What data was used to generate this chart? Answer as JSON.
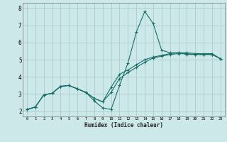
{
  "xlabel": "Humidex (Indice chaleur)",
  "bg_color": "#cce8e8",
  "grid_color": "#aacccc",
  "line_color": "#1a6e6a",
  "xlim": [
    -0.5,
    23.5
  ],
  "ylim": [
    1.7,
    8.3
  ],
  "xticks": [
    0,
    1,
    2,
    3,
    4,
    5,
    6,
    7,
    8,
    9,
    10,
    11,
    12,
    13,
    14,
    15,
    16,
    17,
    18,
    19,
    20,
    21,
    22,
    23
  ],
  "yticks": [
    2,
    3,
    4,
    5,
    6,
    7,
    8
  ],
  "line1_x": [
    0,
    1,
    2,
    3,
    4,
    5,
    6,
    7,
    8,
    9,
    10,
    11,
    12,
    13,
    14,
    15,
    16,
    17,
    18,
    19,
    20,
    21,
    22,
    23
  ],
  "line1_y": [
    2.1,
    2.25,
    2.95,
    3.05,
    3.45,
    3.5,
    3.3,
    3.1,
    2.6,
    2.2,
    2.1,
    3.5,
    4.8,
    6.6,
    7.8,
    7.1,
    5.55,
    5.4,
    5.4,
    5.3,
    5.3,
    5.3,
    5.3,
    5.05
  ],
  "line2_x": [
    0,
    1,
    2,
    3,
    4,
    5,
    6,
    7,
    8,
    9,
    10,
    11,
    12,
    13,
    14,
    15,
    16,
    17,
    18,
    19,
    20,
    21,
    22,
    23
  ],
  "line2_y": [
    2.1,
    2.25,
    2.95,
    3.05,
    3.45,
    3.5,
    3.3,
    3.1,
    2.75,
    2.55,
    3.1,
    3.9,
    4.25,
    4.55,
    4.85,
    5.1,
    5.2,
    5.3,
    5.35,
    5.35,
    5.3,
    5.3,
    5.3,
    5.05
  ],
  "line3_x": [
    0,
    1,
    2,
    3,
    4,
    5,
    6,
    7,
    8,
    9,
    10,
    11,
    12,
    13,
    14,
    15,
    16,
    17,
    18,
    19,
    20,
    21,
    22,
    23
  ],
  "line3_y": [
    2.1,
    2.25,
    2.95,
    3.05,
    3.45,
    3.5,
    3.3,
    3.1,
    2.75,
    2.55,
    3.4,
    4.15,
    4.4,
    4.7,
    5.0,
    5.15,
    5.25,
    5.35,
    5.4,
    5.4,
    5.35,
    5.35,
    5.35,
    5.05
  ],
  "marker": "+",
  "markersize": 3,
  "linewidth": 0.8
}
